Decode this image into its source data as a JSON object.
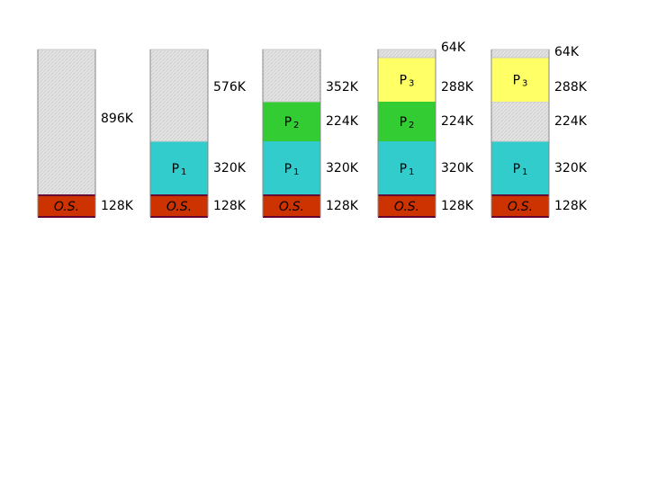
{
  "columns": [
    {
      "blocks": [
        {
          "size": "128K",
          "color": "#cc3300",
          "label": {
            "name": "O.S."
          }
        },
        {
          "size": "896K",
          "color": "#dcdcdc"
        }
      ]
    },
    {
      "blocks": [
        {
          "size": "128K",
          "color": "#cc3300",
          "label": {
            "name": "O.S."
          }
        },
        {
          "size": "320K",
          "color": "#33cccc",
          "label": {
            "name": "P",
            "sub": "1"
          }
        },
        {
          "size": "576K",
          "color": "#dcdcdc"
        }
      ]
    },
    {
      "blocks": [
        {
          "size": "128K",
          "color": "#cc3300",
          "label": {
            "name": "O.S."
          }
        },
        {
          "size": "320K",
          "color": "#33cccc",
          "label": {
            "name": "P",
            "sub": "1"
          }
        },
        {
          "size": "224K",
          "color": "#33cc33",
          "label": {
            "name": "P",
            "sub": "2"
          }
        },
        {
          "size": "352K",
          "color": "#dcdcdc"
        }
      ]
    },
    {
      "blocks": [
        {
          "size": "128K",
          "color": "#cc3300",
          "label": {
            "name": "O.S."
          }
        },
        {
          "size": "320K",
          "color": "#33cccc",
          "label": {
            "name": "P",
            "sub": "1"
          }
        },
        {
          "size": "224K",
          "color": "#33cc33",
          "label": {
            "name": "P",
            "sub": "2"
          }
        },
        {
          "size": "288K",
          "color": "#ffff66",
          "label": {
            "name": "P",
            "sub": "3"
          }
        },
        {
          "size": "64K",
          "color": "#dcdcdc"
        }
      ]
    },
    {
      "blocks": [
        {
          "size": "128K",
          "color": "#cc3300",
          "label": {
            "name": "O.S."
          }
        },
        {
          "size": "320K",
          "color": "#33cccc",
          "label": {
            "name": "P",
            "sub": "1"
          }
        },
        {
          "size": "224K",
          "color": "#dcdcdc"
        },
        {
          "size": "288K",
          "color": "#ffff66",
          "label": {
            "name": "P",
            "sub": "3"
          }
        },
        {
          "size": "64K",
          "color": "#dcdcdc"
        }
      ]
    }
  ]
}
